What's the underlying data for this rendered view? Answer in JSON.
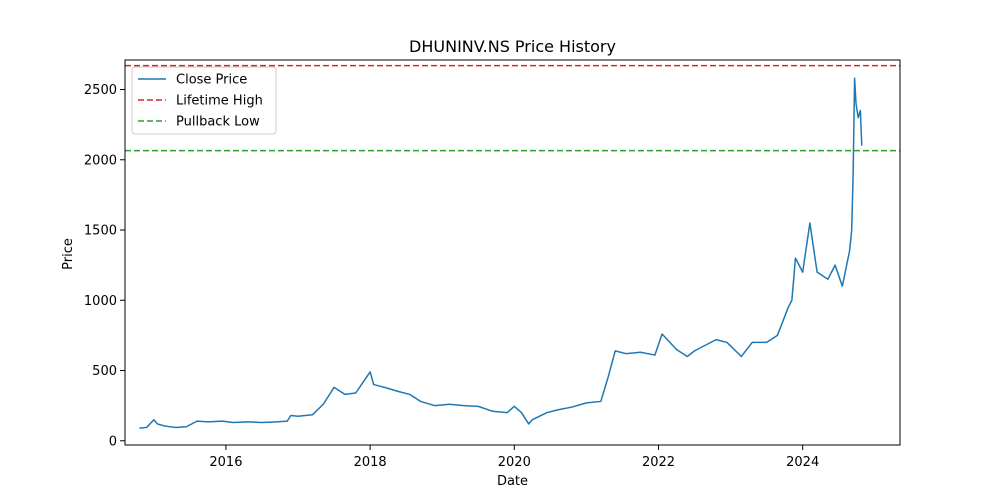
{
  "chart_data": {
    "type": "line",
    "title": "DHUNINV.NS Price History",
    "xlabel": "Date",
    "ylabel": "Price",
    "xlim": [
      2014.6,
      2025.35
    ],
    "ylim": [
      -30,
      2710
    ],
    "x_ticks": [
      2016,
      2018,
      2020,
      2022,
      2024
    ],
    "y_ticks": [
      0,
      500,
      1000,
      1500,
      2000,
      2500
    ],
    "legend_position": "top-left",
    "grid": false,
    "series": [
      {
        "name": "Close Price",
        "color": "#1f77b4",
        "style": "solid",
        "x": [
          2014.8,
          2014.9,
          2015.0,
          2015.05,
          2015.15,
          2015.3,
          2015.45,
          2015.6,
          2015.75,
          2015.95,
          2016.1,
          2016.3,
          2016.5,
          2016.7,
          2016.85,
          2016.9,
          2017.0,
          2017.2,
          2017.35,
          2017.5,
          2017.65,
          2017.8,
          2018.0,
          2018.05,
          2018.2,
          2018.4,
          2018.55,
          2018.7,
          2018.9,
          2019.1,
          2019.3,
          2019.5,
          2019.7,
          2019.9,
          2020.0,
          2020.1,
          2020.2,
          2020.25,
          2020.45,
          2020.6,
          2020.8,
          2021.0,
          2021.2,
          2021.3,
          2021.4,
          2021.55,
          2021.75,
          2021.95,
          2022.05,
          2022.25,
          2022.4,
          2022.5,
          2022.65,
          2022.8,
          2022.95,
          2023.15,
          2023.3,
          2023.5,
          2023.65,
          2023.8,
          2023.85,
          2023.9,
          2023.95,
          2024.0,
          2024.1,
          2024.2,
          2024.35,
          2024.45,
          2024.55,
          2024.65,
          2024.68,
          2024.7,
          2024.72,
          2024.74,
          2024.77,
          2024.8,
          2024.82
        ],
        "y": [
          90,
          95,
          150,
          120,
          105,
          95,
          100,
          140,
          135,
          140,
          130,
          135,
          130,
          135,
          140,
          180,
          175,
          185,
          260,
          380,
          330,
          340,
          490,
          400,
          380,
          350,
          330,
          280,
          250,
          260,
          250,
          245,
          210,
          200,
          245,
          200,
          120,
          150,
          200,
          220,
          240,
          270,
          280,
          450,
          640,
          620,
          630,
          610,
          760,
          650,
          600,
          640,
          680,
          720,
          700,
          600,
          700,
          700,
          750,
          950,
          1000,
          1300,
          1250,
          1200,
          1550,
          1200,
          1150,
          1250,
          1100,
          1350,
          1500,
          1900,
          2580,
          2400,
          2300,
          2350,
          2100
        ]
      }
    ],
    "reference_lines": [
      {
        "name": "Lifetime High",
        "y": 2670,
        "color": "#d62728",
        "style": "dashed"
      },
      {
        "name": "Pullback Low",
        "y": 2065,
        "color": "#2ca02c",
        "style": "dashed"
      }
    ]
  }
}
